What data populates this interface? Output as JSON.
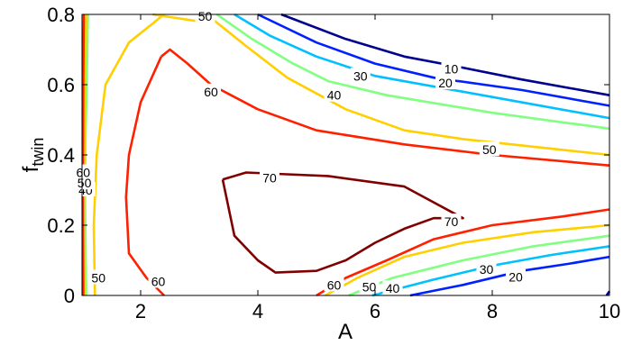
{
  "chart_data": {
    "type": "contour",
    "xlabel": "A",
    "ylabel": "f",
    "ylabel_subscript": "twin",
    "xlim": [
      1,
      10
    ],
    "ylim": [
      0,
      0.8
    ],
    "xticks": [
      2,
      4,
      6,
      8,
      10
    ],
    "xtick_labels": [
      "2",
      "4",
      "6",
      "8",
      "10"
    ],
    "yticks": [
      0,
      0.2,
      0.4,
      0.6,
      0.8
    ],
    "ytick_labels": [
      "0",
      "0.2",
      "0.4",
      "0.6",
      "0.8"
    ],
    "grid": false,
    "legend": "none",
    "levels": [
      {
        "value": 10,
        "label": "10",
        "color": "#00008f",
        "segments": [
          [
            [
              4.4,
              0.8
            ],
            [
              5.5,
              0.73
            ],
            [
              6.5,
              0.68
            ],
            [
              7.3,
              0.655
            ],
            [
              8.5,
              0.615
            ],
            [
              10,
              0.57
            ]
          ],
          [
            [
              10,
              0.012
            ],
            [
              9.95,
              0.0
            ]
          ]
        ],
        "labels": [
          [
            7.3,
            0.645
          ]
        ]
      },
      {
        "value": 20,
        "label": "20",
        "color": "#0020ff",
        "segments": [
          [
            [
              4.0,
              0.8
            ],
            [
              5.0,
              0.72
            ],
            [
              6.0,
              0.66
            ],
            [
              7.0,
              0.62
            ],
            [
              8.5,
              0.585
            ],
            [
              10,
              0.54
            ]
          ],
          [
            [
              6.6,
              0.0
            ],
            [
              7.5,
              0.03
            ],
            [
              8.5,
              0.07
            ],
            [
              9.3,
              0.09
            ],
            [
              10,
              0.11
            ]
          ]
        ],
        "labels": [
          [
            7.2,
            0.605
          ],
          [
            8.4,
            0.052
          ]
        ]
      },
      {
        "value": 30,
        "label": "30",
        "color": "#00c0ff",
        "segments": [
          [
            [
              3.6,
              0.8
            ],
            [
              4.2,
              0.74
            ],
            [
              5.0,
              0.68
            ],
            [
              6.0,
              0.625
            ],
            [
              8.0,
              0.565
            ],
            [
              10,
              0.505
            ]
          ],
          [
            [
              5.95,
              0.0
            ],
            [
              7.0,
              0.045
            ],
            [
              8.0,
              0.085
            ],
            [
              9.0,
              0.115
            ],
            [
              10,
              0.14
            ]
          ]
        ],
        "labels": [
          [
            5.75,
            0.625
          ],
          [
            7.9,
            0.075
          ]
        ]
      },
      {
        "value": 40,
        "label": "40",
        "color": "#80ff80",
        "segments": [
          [
            [
              3.3,
              0.8
            ],
            [
              3.9,
              0.73
            ],
            [
              4.6,
              0.66
            ],
            [
              5.2,
              0.61
            ],
            [
              6.2,
              0.57
            ],
            [
              8.0,
              0.52
            ],
            [
              10,
              0.475
            ]
          ],
          [
            [
              5.55,
              0.0
            ],
            [
              6.3,
              0.05
            ],
            [
              7.5,
              0.1
            ],
            [
              8.7,
              0.14
            ],
            [
              10,
              0.17
            ]
          ],
          [
            [
              1.07,
              0.0
            ],
            [
              1.06,
              0.15
            ],
            [
              1.05,
              0.3
            ],
            [
              1.06,
              0.45
            ],
            [
              1.08,
              0.6
            ],
            [
              1.1,
              0.8
            ]
          ]
        ],
        "labels": [
          [
            5.3,
            0.57
          ],
          [
            6.3,
            0.02
          ],
          [
            1.06,
            0.3
          ]
        ]
      },
      {
        "value": 50,
        "label": "50",
        "color": "#ffcf00",
        "segments": [
          [
            [
              3.2,
              0.8
            ],
            [
              3.0,
              0.78
            ],
            [
              2.6,
              0.79
            ],
            [
              2.2,
              0.8
            ]
          ],
          [
            [
              3.2,
              0.79
            ],
            [
              3.8,
              0.71
            ],
            [
              4.5,
              0.62
            ],
            [
              5.5,
              0.53
            ],
            [
              6.5,
              0.47
            ],
            [
              7.5,
              0.445
            ],
            [
              10,
              0.4
            ]
          ],
          [
            [
              5.15,
              0.0
            ],
            [
              5.7,
              0.05
            ],
            [
              6.5,
              0.11
            ],
            [
              7.5,
              0.15
            ],
            [
              8.7,
              0.18
            ],
            [
              10,
              0.2
            ]
          ],
          [
            [
              2.4,
              0.8
            ],
            [
              1.8,
              0.72
            ],
            [
              1.4,
              0.6
            ],
            [
              1.25,
              0.4
            ],
            [
              1.2,
              0.2
            ],
            [
              1.22,
              0.0
            ]
          ],
          [
            [
              1.04,
              0.0
            ],
            [
              1.03,
              0.2
            ],
            [
              1.04,
              0.4
            ],
            [
              1.05,
              0.6
            ],
            [
              1.07,
              0.8
            ]
          ]
        ],
        "labels": [
          [
            3.1,
            0.795
          ],
          [
            7.95,
            0.415
          ],
          [
            5.9,
            0.025
          ],
          [
            1.28,
            0.05
          ],
          [
            1.04,
            0.32
          ]
        ]
      },
      {
        "value": 60,
        "label": "60",
        "color": "#ff2000",
        "segments": [
          [
            [
              2.35,
              0.68
            ],
            [
              2.5,
              0.7
            ],
            [
              2.8,
              0.66
            ],
            [
              3.2,
              0.6
            ],
            [
              4.0,
              0.53
            ],
            [
              5.0,
              0.47
            ],
            [
              6.5,
              0.43
            ],
            [
              8.0,
              0.4
            ],
            [
              10,
              0.37
            ]
          ],
          [
            [
              2.35,
              0.68
            ],
            [
              2.0,
              0.55
            ],
            [
              1.8,
              0.4
            ],
            [
              1.75,
              0.28
            ],
            [
              1.8,
              0.12
            ],
            [
              2.1,
              0.05
            ],
            [
              2.4,
              0.0
            ]
          ],
          [
            [
              5.0,
              0.0
            ],
            [
              5.5,
              0.05
            ],
            [
              6.2,
              0.1
            ],
            [
              7.0,
              0.16
            ],
            [
              8.0,
              0.2
            ],
            [
              9.2,
              0.225
            ],
            [
              10,
              0.245
            ]
          ],
          [
            [
              1.02,
              0.0
            ],
            [
              1.01,
              0.3
            ],
            [
              1.02,
              0.6
            ],
            [
              1.03,
              0.8
            ]
          ]
        ],
        "labels": [
          [
            3.2,
            0.58
          ],
          [
            2.3,
            0.04
          ],
          [
            5.3,
            0.03
          ],
          [
            1.02,
            0.35
          ]
        ]
      },
      {
        "value": 70,
        "label": "70",
        "color": "#800000",
        "segments": [
          [
            [
              3.4,
              0.33
            ],
            [
              3.8,
              0.35
            ],
            [
              4.5,
              0.345
            ],
            [
              5.2,
              0.34
            ],
            [
              6.5,
              0.31
            ],
            [
              7.5,
              0.22
            ],
            [
              7.0,
              0.22
            ],
            [
              6.5,
              0.19
            ],
            [
              6.0,
              0.15
            ],
            [
              5.5,
              0.1
            ],
            [
              5.0,
              0.07
            ],
            [
              4.3,
              0.065
            ],
            [
              4.0,
              0.1
            ],
            [
              3.6,
              0.17
            ],
            [
              3.5,
              0.25
            ],
            [
              3.4,
              0.33
            ]
          ]
        ],
        "labels": [
          [
            4.2,
            0.335
          ],
          [
            7.3,
            0.21
          ]
        ]
      }
    ]
  }
}
